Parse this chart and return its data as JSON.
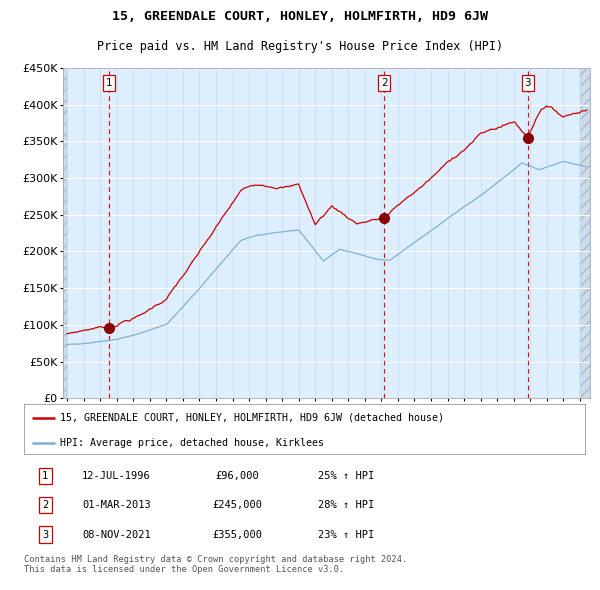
{
  "title": "15, GREENDALE COURT, HONLEY, HOLMFIRTH, HD9 6JW",
  "subtitle": "Price paid vs. HM Land Registry's House Price Index (HPI)",
  "legend_line1": "15, GREENDALE COURT, HONLEY, HOLMFIRTH, HD9 6JW (detached house)",
  "legend_line2": "HPI: Average price, detached house, Kirklees",
  "sale1_date": "12-JUL-1996",
  "sale1_price": 96000,
  "sale1_pct": "25%",
  "sale2_date": "01-MAR-2013",
  "sale2_price": 245000,
  "sale2_pct": "28%",
  "sale3_date": "08-NOV-2021",
  "sale3_price": 355000,
  "sale3_pct": "23%",
  "footer1": "Contains HM Land Registry data © Crown copyright and database right 2024.",
  "footer2": "This data is licensed under the Open Government Licence v3.0.",
  "red_line_color": "#cc0000",
  "blue_line_color": "#7aadd4",
  "marker_color": "#880000",
  "vline_color": "#cc0000",
  "plot_bg": "#ddeeff",
  "ylim": [
    0,
    450000
  ],
  "xstart": 1993.75,
  "xend": 2025.6,
  "sale1_x": 1996.54,
  "sale2_x": 2013.17,
  "sale3_x": 2021.86
}
